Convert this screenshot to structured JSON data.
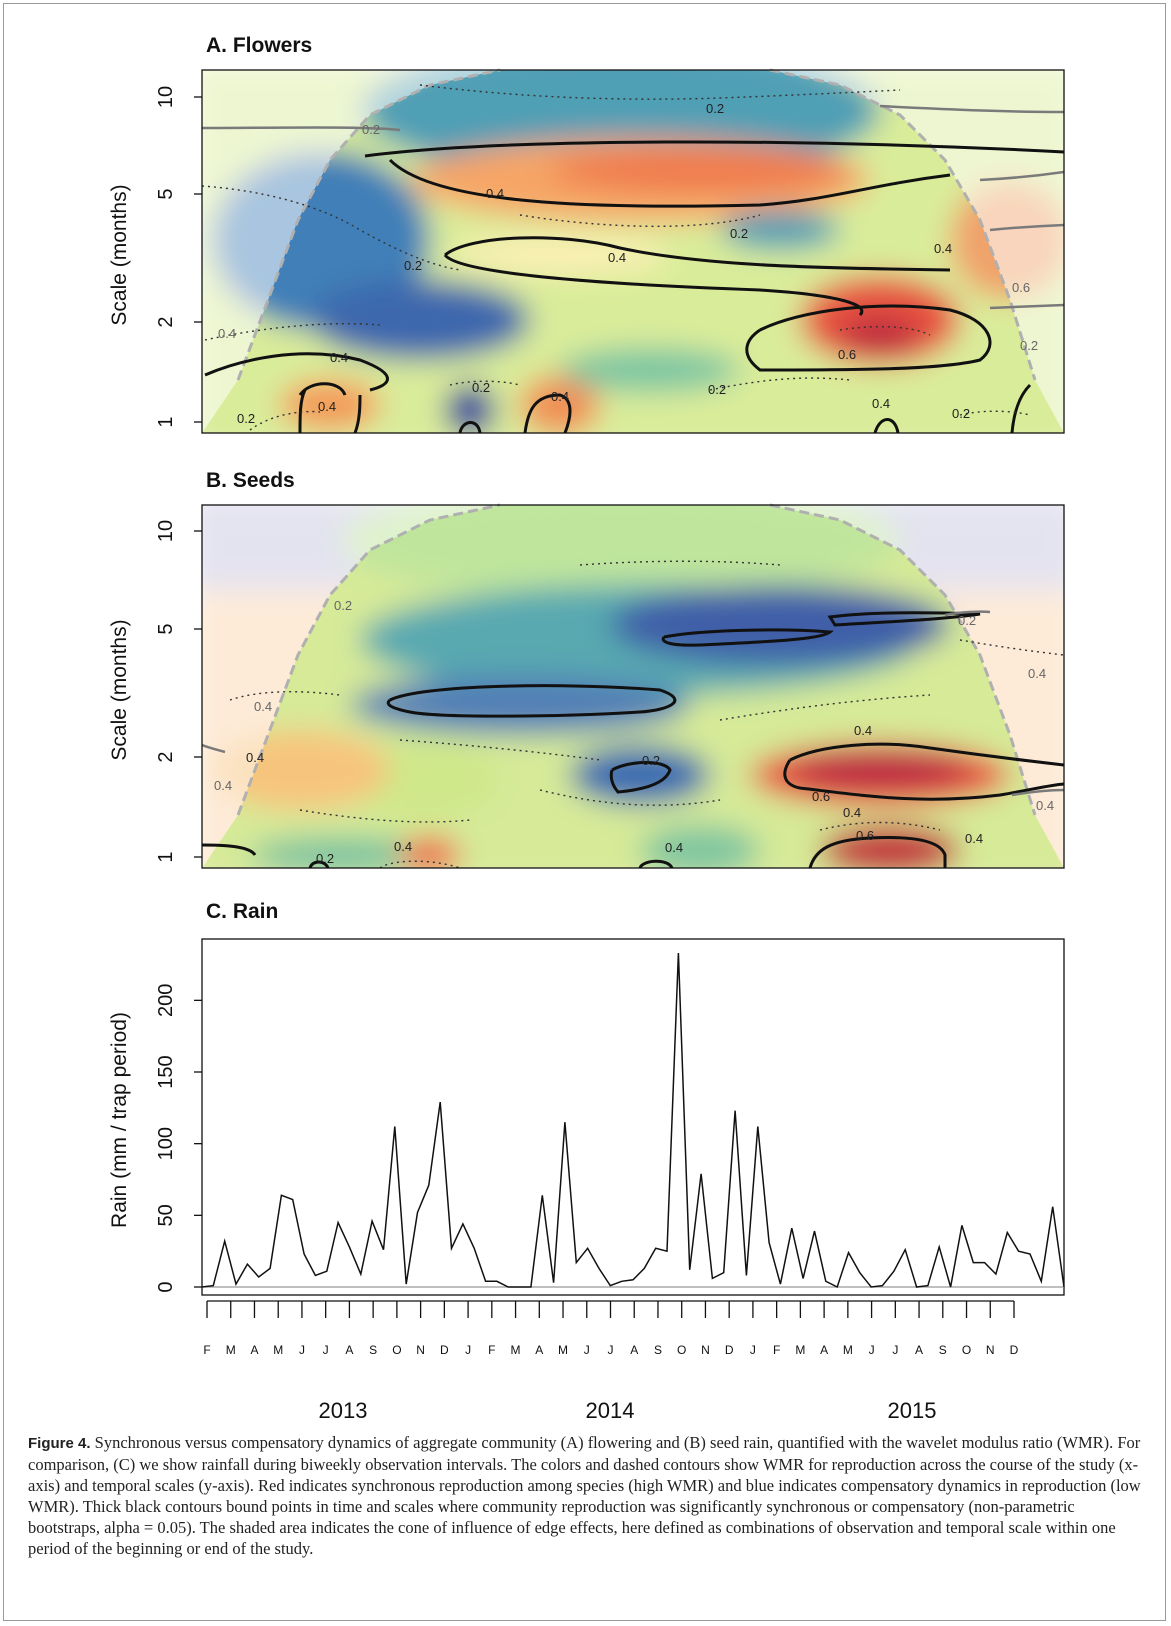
{
  "panels": {
    "a": {
      "title": "A. Flowers",
      "ylabel": "Scale (months)"
    },
    "b": {
      "title": "B. Seeds",
      "ylabel": "Scale (months)"
    }
  },
  "scale_ticks": [
    "1",
    "2",
    "5",
    "10"
  ],
  "contour_labels": {
    "a": [
      "0.2",
      "0.2",
      "0.4",
      "0.4",
      "0.2",
      "0.2",
      "0.6",
      "0.4",
      "0.4",
      "0.2",
      "0.2",
      "0.4",
      "0.2",
      "0.4",
      "0.2",
      "0.4",
      "0.6",
      "0.2",
      "0.4"
    ],
    "b": [
      "0.2",
      "0.4",
      "0.4",
      "0.4",
      "0.2",
      "0.6",
      "0.4",
      "0.4",
      "0.2",
      "0.4",
      "0.2",
      "0.4",
      "0.4",
      "0.4",
      "0.6",
      "0.4"
    ]
  },
  "chart_data": {
    "type": "line",
    "title": "C. Rain",
    "xlabel": "",
    "ylabel": "Rain (mm / trap period)",
    "ylim": [
      0,
      235
    ],
    "yticks": [
      0,
      50,
      100,
      150,
      200
    ],
    "month_labels": [
      "F",
      "M",
      "A",
      "M",
      "J",
      "J",
      "A",
      "S",
      "O",
      "N",
      "D",
      "J",
      "F",
      "M",
      "A",
      "M",
      "J",
      "J",
      "A",
      "S",
      "O",
      "N",
      "D",
      "J",
      "F",
      "M",
      "A",
      "M",
      "J",
      "J",
      "A",
      "S",
      "O",
      "N",
      "D"
    ],
    "year_labels": [
      "2013",
      "2014",
      "2015"
    ],
    "values": [
      0,
      1,
      32,
      2,
      16,
      7,
      13,
      64,
      61,
      23,
      8,
      11,
      45,
      28,
      9,
      46,
      26,
      112,
      2,
      52,
      71,
      129,
      27,
      44,
      27,
      4,
      4,
      0,
      0,
      0,
      64,
      3,
      115,
      17,
      27,
      13,
      1,
      4,
      5,
      13,
      27,
      25,
      233,
      12,
      79,
      6,
      10,
      123,
      8,
      112,
      31,
      2,
      41,
      6,
      39,
      4,
      0,
      24,
      10,
      0,
      1,
      11,
      26,
      0,
      1,
      28,
      0,
      43,
      17,
      17,
      9,
      38,
      25,
      23,
      4,
      56,
      0
    ]
  },
  "caption": {
    "label": "Figure 4.",
    "text": "Synchronous versus compensatory dynamics of aggregate community (A) flowering and (B) seed rain, quantified with the wavelet modulus ratio (WMR). For comparison, (C) we show rainfall during biweekly observation intervals. The colors and dashed contours show WMR for reproduction across the course of the study (x-axis) and temporal scales (y-axis). Red indicates synchronous reproduction among species (high WMR) and blue indicates compensatory dynamics in reproduction (low WMR). Thick black contours bound points in time and scales where community reproduction was significantly synchronous or compensatory (non-parametric bootstraps, alpha = 0.05). The shaded area indicates the cone of influence of edge effects, here defined as combinations of observation and temporal scale within one period of the beginning or end of the study."
  }
}
